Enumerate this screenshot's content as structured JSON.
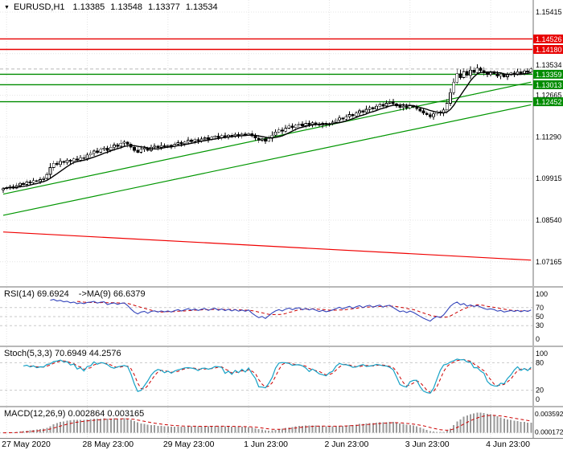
{
  "header": {
    "dropdown_icon": "▼",
    "symbol_period": "EURUSD,H1",
    "open": "1.13385",
    "high": "1.13548",
    "low": "1.13377",
    "close": "1.13534"
  },
  "indicators": {
    "rsi": {
      "label": "RSI(14) 69.6924",
      "ma_label": "->MA(9) 66.6379"
    },
    "stoch": {
      "label": "Stoch(5,3,3) 70.6949 44.2576"
    },
    "macd": {
      "label": "MACD(12,26,9) 0.002864 0.003165"
    }
  },
  "chart_data": {
    "type": "candlestick",
    "symbol": "EURUSD",
    "timeframe": "H1",
    "ohlc_current": {
      "open": 1.13385,
      "high": 1.13548,
      "low": 1.13377,
      "close": 1.13534
    },
    "y_range": [
      1.07,
      1.156
    ],
    "plot": {
      "x_start": 4,
      "x_step": 4.18,
      "top": 8,
      "bottom": 332,
      "right": 662,
      "axis_x": 663,
      "main_h": 356,
      "rsi_h": 72,
      "stoch_h": 73,
      "macd_h": 38
    },
    "closes": [
      1.0958,
      1.0962,
      1.0965,
      1.096,
      1.0968,
      1.0975,
      1.0972,
      1.098,
      1.0978,
      1.0985,
      1.0982,
      1.0988,
      1.0992,
      1.1005,
      1.1028,
      1.1042,
      1.1038,
      1.1048,
      1.1044,
      1.1052,
      1.1048,
      1.1056,
      1.1052,
      1.106,
      1.1058,
      1.107,
      1.1075,
      1.1082,
      1.1078,
      1.1088,
      1.1092,
      1.1085,
      1.1095,
      1.1102,
      1.1098,
      1.1108,
      1.1112,
      1.1105,
      1.1095,
      1.1085,
      1.1078,
      1.1088,
      1.1092,
      1.1085,
      1.1095,
      1.1098,
      1.1094,
      1.11,
      1.1097,
      1.1101,
      1.1098,
      1.1105,
      1.111,
      1.1106,
      1.1112,
      1.1118,
      1.1114,
      1.112,
      1.1116,
      1.1122,
      1.1126,
      1.1121,
      1.1128,
      1.1132,
      1.1127,
      1.1133,
      1.1129,
      1.1135,
      1.1131,
      1.1137,
      1.1133,
      1.1138,
      1.1135,
      1.114,
      1.1132,
      1.1125,
      1.1118,
      1.1122,
      1.1115,
      1.1124,
      1.1135,
      1.1145,
      1.1152,
      1.1148,
      1.1158,
      1.1165,
      1.116,
      1.1168,
      1.1172,
      1.1166,
      1.1174,
      1.117,
      1.1176,
      1.1172,
      1.1168,
      1.1174,
      1.117,
      1.1173,
      1.1178,
      1.1185,
      1.1192,
      1.1188,
      1.1196,
      1.1203,
      1.1198,
      1.1208,
      1.1215,
      1.121,
      1.122,
      1.1226,
      1.1221,
      1.123,
      1.1236,
      1.1231,
      1.124,
      1.1244,
      1.1238,
      1.1232,
      1.1226,
      1.123,
      1.1225,
      1.1232,
      1.1228,
      1.1222,
      1.1215,
      1.1208,
      1.1202,
      1.1196,
      1.1205,
      1.1212,
      1.1208,
      1.1218,
      1.124,
      1.1275,
      1.131,
      1.1338,
      1.1325,
      1.1345,
      1.1332,
      1.135,
      1.1342,
      1.1356,
      1.1348,
      1.134,
      1.1335,
      1.1342,
      1.1338,
      1.133,
      1.1336,
      1.1328,
      1.1334,
      1.134,
      1.1336,
      1.1344,
      1.1338,
      1.1347,
      1.1343,
      1.13534
    ],
    "time_labels": [
      "27 May 2020",
      "28 May 23:00",
      "29 May 23:00",
      "1 Jun 23:00",
      "2 Jun 23:00",
      "3 Jun 23:00",
      "4 Jun 23:00"
    ],
    "label_indices": [
      1,
      25,
      49,
      73,
      97,
      121,
      145
    ],
    "price_grid_labels": [
      {
        "v": 1.15415,
        "t": "1.15415"
      },
      {
        "v": 1.12665,
        "t": "1.12665"
      },
      {
        "v": 1.1129,
        "t": "1.11290"
      },
      {
        "v": 1.09915,
        "t": "1.09915"
      },
      {
        "v": 1.0854,
        "t": "1.08540"
      },
      {
        "v": 1.07165,
        "t": "1.07165"
      }
    ],
    "grid_only_levels": [
      1.1404
    ],
    "current_price": {
      "v": 1.13534,
      "t": "1.13534"
    },
    "h_lines": [
      {
        "v": 1.14526,
        "t": "1.14526",
        "color": "#E80000"
      },
      {
        "v": 1.1418,
        "t": "1.14180",
        "color": "#E80000"
      },
      {
        "v": 1.13359,
        "t": "1.13359",
        "color": "#008C00"
      },
      {
        "v": 1.13013,
        "t": "1.13013",
        "color": "#008C00"
      },
      {
        "v": 1.12452,
        "t": "1.12452",
        "color": "#008C00"
      }
    ],
    "trend_lines": [
      {
        "p1": 1.094,
        "p2": 1.131,
        "color": "#009600"
      },
      {
        "p1": 1.087,
        "p2": 1.1235,
        "color": "#009600"
      },
      {
        "p1": 1.0815,
        "p2": 1.0722,
        "color": "#F00000"
      }
    ],
    "indicators": {
      "rsi": {
        "period": 14,
        "value": 69.6924,
        "ma_period": 9,
        "ma_value": 66.6379,
        "axis_labels": [
          100,
          70,
          50,
          30,
          0
        ],
        "levels": [
          70,
          50,
          30
        ],
        "color": "#3344BB",
        "ma_color": "#CC0000"
      },
      "stoch": {
        "k": 5,
        "d": 3,
        "slowing": 3,
        "value": 70.6949,
        "signal": 44.2576,
        "axis_labels": [
          100,
          80,
          20,
          0
        ],
        "levels": [
          80,
          20
        ],
        "color": "#17A2C6",
        "signal_color": "#CC0000"
      },
      "macd": {
        "fast": 12,
        "slow": 26,
        "signal_period": 9,
        "value": 0.002864,
        "signal": 0.003165,
        "axis_labels": [
          {
            "v": 0.003592,
            "t": "0.003592"
          },
          {
            "v": 0.000172,
            "t": "0.000172"
          }
        ],
        "hist_color": "#9A9A9A",
        "signal_color": "#CC0000"
      }
    },
    "candle_colors": {
      "bull": "#FFFFFF",
      "bear": "#000000",
      "outline": "#000000",
      "wick": "#000000",
      "ma": "#000000"
    }
  }
}
